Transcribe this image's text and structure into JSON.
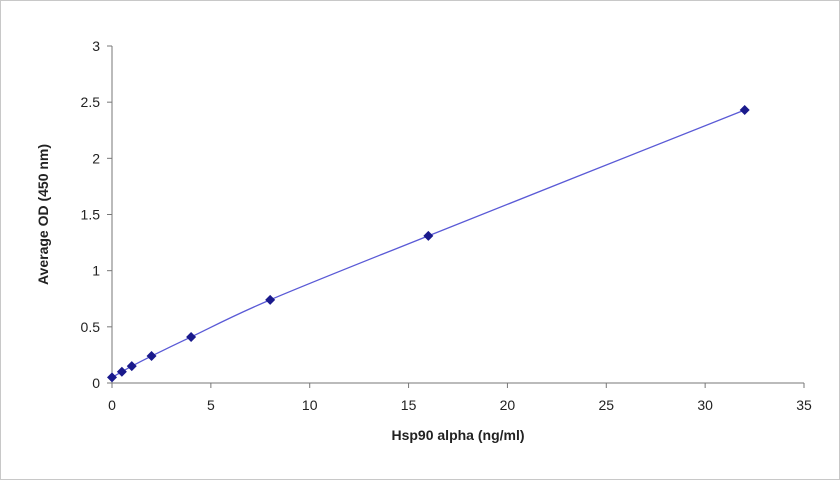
{
  "chart_data": {
    "type": "scatter",
    "title": "",
    "xlabel": "Hsp90 alpha (ng/ml)",
    "ylabel": "Average OD (450 nm)",
    "xlim": [
      0,
      35
    ],
    "ylim": [
      0,
      3
    ],
    "x_ticks": [
      "0",
      "5",
      "10",
      "15",
      "20",
      "25",
      "30",
      "35"
    ],
    "y_ticks": [
      "0",
      "0.5",
      "1",
      "1.5",
      "2",
      "2.5",
      "3"
    ],
    "grid": false,
    "legend": "none",
    "series": [
      {
        "x": [
          0,
          0.5,
          1,
          2,
          4,
          8,
          16,
          32
        ],
        "y": [
          0.05,
          0.1,
          0.15,
          0.24,
          0.41,
          0.74,
          1.31,
          2.43
        ],
        "marker": "diamond",
        "line": "smooth",
        "color": "#1a1a8c",
        "line_color": "#5a5ad6"
      }
    ]
  }
}
